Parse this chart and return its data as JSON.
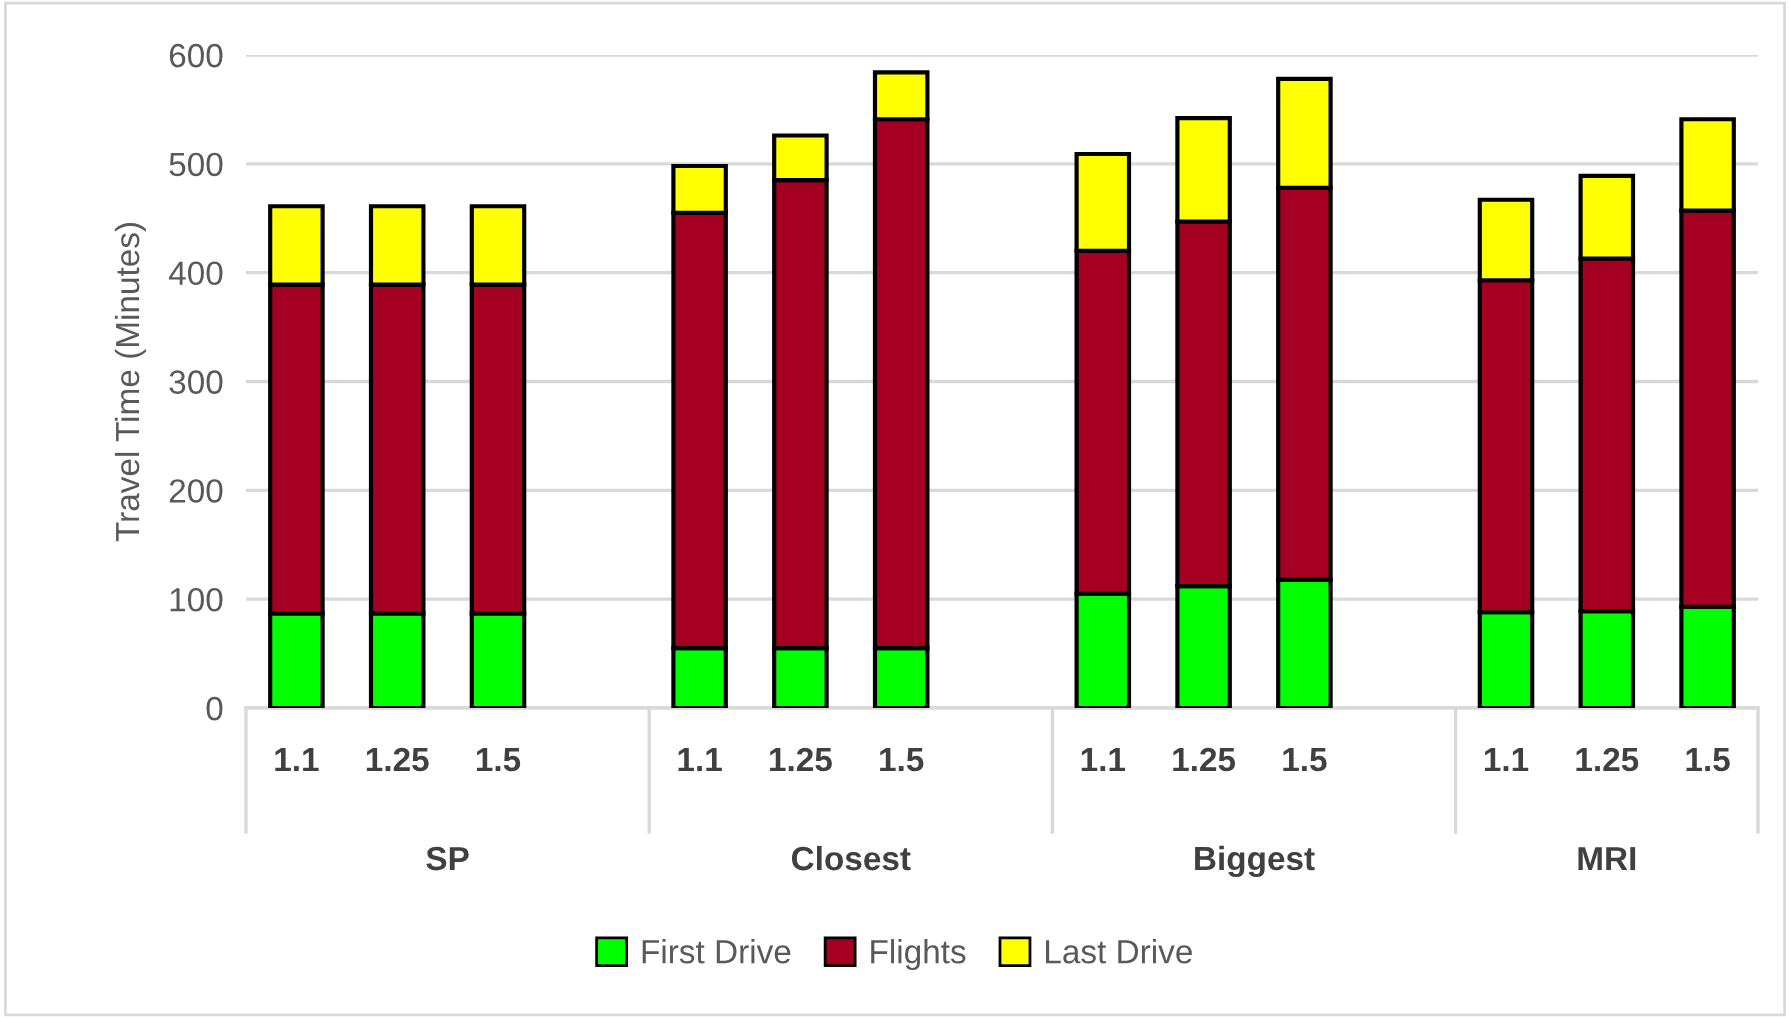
{
  "chart_data": {
    "type": "bar",
    "stacked": true,
    "ylabel": "Travel Time (Minutes)",
    "categories": [
      "1.1",
      "1.25",
      "1.5",
      null,
      "1.1",
      "1.25",
      "1.5",
      null,
      "1.1",
      "1.25",
      "1.5",
      null,
      "1.1",
      "1.25",
      "1.5"
    ],
    "series": [
      {
        "name": "First Drive",
        "color": "#00ff00",
        "values": [
          87,
          87,
          87,
          null,
          55,
          55,
          55,
          null,
          105,
          112,
          118,
          null,
          88,
          89,
          93
        ]
      },
      {
        "name": "Flights",
        "color": "#a50021",
        "values": [
          302,
          302,
          302,
          null,
          400,
          430,
          486,
          null,
          315,
          335,
          360,
          null,
          305,
          324,
          364
        ]
      },
      {
        "name": "Last Drive",
        "color": "#ffff00",
        "values": [
          72,
          72,
          72,
          null,
          43,
          41,
          43,
          null,
          89,
          95,
          100,
          null,
          74,
          76,
          84
        ]
      }
    ],
    "annotations": [
      "SP",
      "Closest",
      "Biggest",
      "MRI"
    ],
    "ylim": [
      0,
      600
    ],
    "yticks": [
      0,
      100,
      200,
      300,
      400,
      500,
      600
    ],
    "grid": "y",
    "legend": "bottom"
  }
}
